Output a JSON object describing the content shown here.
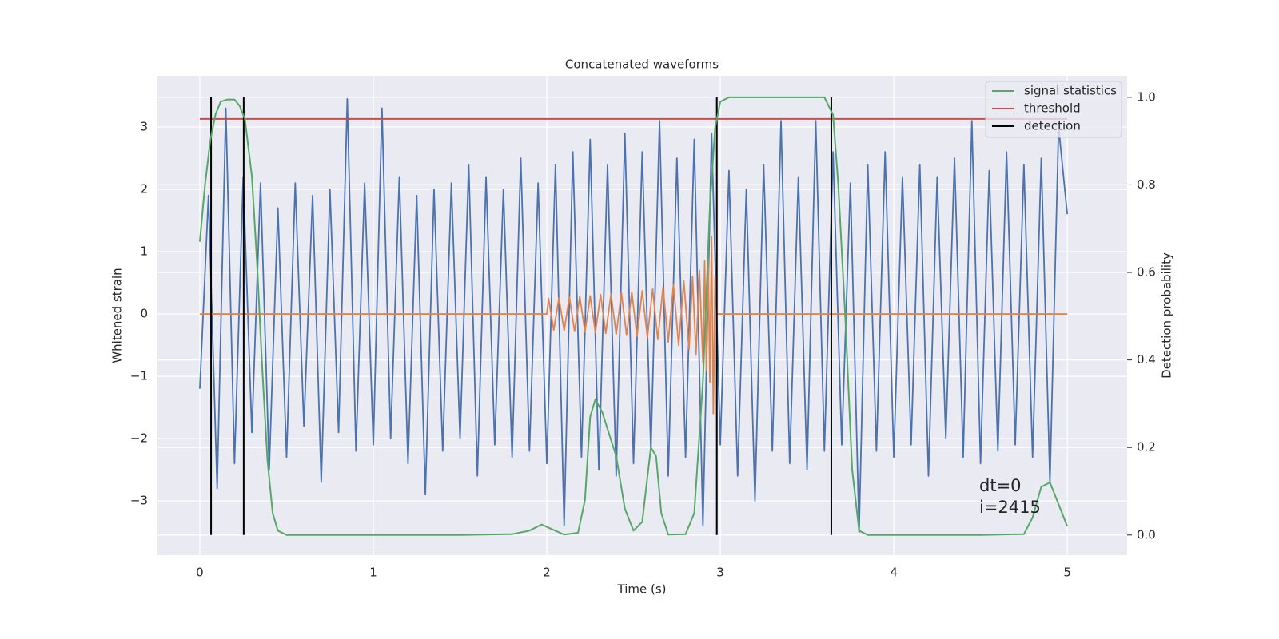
{
  "chart_data": {
    "type": "line",
    "title": "Concatenated waveforms",
    "x_label": "Time (s)",
    "y_label": "Whitened strain",
    "y2_label": "Detection probability",
    "xlim": [
      -0.244,
      5.345
    ],
    "ylim": [
      -3.87,
      3.82
    ],
    "y2lim": [
      -0.046,
      1.049
    ],
    "xticks": [
      0,
      1,
      2,
      3,
      4,
      5
    ],
    "yticks": [
      {
        "value": -3,
        "label": "−3"
      },
      {
        "value": -2,
        "label": "−2"
      },
      {
        "value": -1,
        "label": "−1"
      },
      0,
      1,
      2,
      3
    ],
    "y2ticks": [
      {
        "value": 0,
        "label": "0.0"
      },
      0.2,
      0.4,
      0.6,
      0.8,
      {
        "value": 1,
        "label": "1.0"
      }
    ],
    "grid": true,
    "legend": "upper right",
    "annotations": [
      "dt=0",
      "i=2415"
    ],
    "strain": {
      "color": "#4c72b0",
      "x": [
        0,
        0.05,
        0.1,
        0.15,
        0.2,
        0.25,
        0.3,
        0.35,
        0.4,
        0.45,
        0.5,
        0.55,
        0.6,
        0.65,
        0.7,
        0.75,
        0.8,
        0.85,
        0.9,
        0.95,
        1.0,
        1.05,
        1.1,
        1.15,
        1.2,
        1.25,
        1.3,
        1.35,
        1.4,
        1.45,
        1.5,
        1.55,
        1.6,
        1.65,
        1.7,
        1.75,
        1.8,
        1.85,
        1.9,
        1.95,
        2.0,
        2.05,
        2.1,
        2.15,
        2.2,
        2.25,
        2.3,
        2.35,
        2.4,
        2.45,
        2.5,
        2.55,
        2.6,
        2.65,
        2.7,
        2.75,
        2.8,
        2.85,
        2.9,
        2.95,
        3.0,
        3.05,
        3.1,
        3.15,
        3.2,
        3.25,
        3.3,
        3.35,
        3.4,
        3.45,
        3.5,
        3.55,
        3.6,
        3.65,
        3.7,
        3.75,
        3.8,
        3.85,
        3.9,
        3.95,
        4.0,
        4.05,
        4.1,
        4.15,
        4.2,
        4.25,
        4.3,
        4.35,
        4.4,
        4.45,
        4.5,
        4.55,
        4.6,
        4.65,
        4.7,
        4.75,
        4.8,
        4.85,
        4.9,
        4.95,
        5.0
      ],
      "values": [
        -1.2,
        1.9,
        -2.8,
        3.3,
        -2.4,
        2.2,
        -1.9,
        2.1,
        -2.5,
        1.7,
        -2.3,
        2.1,
        -1.8,
        1.9,
        -2.7,
        2.0,
        -1.9,
        3.45,
        -2.2,
        2.1,
        -2.1,
        3.3,
        -2.0,
        2.2,
        -2.4,
        1.9,
        -2.9,
        2.0,
        -2.2,
        2.1,
        -2.0,
        2.4,
        -2.6,
        2.2,
        -2.1,
        2.0,
        -2.3,
        2.5,
        -2.2,
        2.1,
        -2.4,
        2.4,
        -3.4,
        2.6,
        -2.3,
        2.8,
        -2.5,
        2.4,
        -2.6,
        2.9,
        -2.4,
        2.6,
        -2.2,
        3.1,
        -2.6,
        2.5,
        -2.3,
        2.8,
        -3.4,
        2.9,
        -2.1,
        2.3,
        -2.6,
        2.0,
        -3.0,
        2.4,
        -2.2,
        3.1,
        -2.4,
        2.2,
        -2.5,
        3.1,
        -2.2,
        2.6,
        -2.1,
        2.1,
        -3.5,
        2.4,
        -2.2,
        2.6,
        -2.3,
        2.2,
        -2.1,
        2.4,
        -2.6,
        2.2,
        -2.0,
        2.5,
        -2.3,
        3.1,
        -2.4,
        2.3,
        -2.2,
        2.6,
        -2.1,
        2.4,
        -2.3,
        2.5,
        -2.7,
        3.0,
        1.6
      ]
    },
    "template": {
      "color": "#dd8452",
      "x": [
        0,
        2.0,
        2.01,
        2.04,
        2.07,
        2.1,
        2.13,
        2.16,
        2.19,
        2.22,
        2.25,
        2.28,
        2.31,
        2.34,
        2.37,
        2.4,
        2.43,
        2.46,
        2.49,
        2.52,
        2.55,
        2.58,
        2.61,
        2.64,
        2.67,
        2.7,
        2.73,
        2.76,
        2.79,
        2.82,
        2.84,
        2.86,
        2.88,
        2.9,
        2.91,
        2.92,
        2.93,
        2.94,
        2.95,
        2.96,
        2.97,
        2.98,
        3.0,
        5.0
      ],
      "values": [
        0,
        0,
        0.25,
        -0.26,
        0.26,
        -0.27,
        0.27,
        -0.28,
        0.28,
        -0.29,
        0.29,
        -0.3,
        0.31,
        -0.31,
        0.32,
        -0.33,
        0.34,
        -0.34,
        0.35,
        -0.36,
        0.37,
        -0.38,
        0.4,
        -0.41,
        0.43,
        -0.45,
        0.47,
        -0.5,
        0.53,
        -0.57,
        0.6,
        -0.65,
        0.7,
        -0.78,
        0.85,
        -0.9,
        1.0,
        -1.1,
        1.25,
        -1.6,
        0.6,
        0,
        0,
        0
      ]
    },
    "series": [
      {
        "name": "signal statistics",
        "color": "#55a868",
        "axis": "y2",
        "x": [
          0,
          0.03,
          0.06,
          0.09,
          0.12,
          0.16,
          0.2,
          0.23,
          0.26,
          0.3,
          0.33,
          0.36,
          0.39,
          0.42,
          0.45,
          0.5,
          1.0,
          1.5,
          1.8,
          1.9,
          1.97,
          2.02,
          2.1,
          2.18,
          2.22,
          2.25,
          2.28,
          2.32,
          2.4,
          2.45,
          2.5,
          2.55,
          2.6,
          2.63,
          2.66,
          2.7,
          2.8,
          2.85,
          2.9,
          2.94,
          2.97,
          3.0,
          3.05,
          3.6,
          3.65,
          3.68,
          3.72,
          3.76,
          3.8,
          3.85,
          4.5,
          4.75,
          4.8,
          4.85,
          4.9,
          4.95,
          5.0
        ],
        "values": [
          0.67,
          0.8,
          0.9,
          0.96,
          0.99,
          0.995,
          0.995,
          0.98,
          0.95,
          0.82,
          0.62,
          0.38,
          0.17,
          0.05,
          0.01,
          0,
          0,
          0,
          0.002,
          0.01,
          0.024,
          0.015,
          0.001,
          0.005,
          0.08,
          0.27,
          0.31,
          0.28,
          0.18,
          0.06,
          0.01,
          0.03,
          0.2,
          0.18,
          0.05,
          0.001,
          0.002,
          0.05,
          0.35,
          0.75,
          0.93,
          0.99,
          1.0,
          1.0,
          0.96,
          0.8,
          0.5,
          0.15,
          0.01,
          0,
          0,
          0.002,
          0.04,
          0.11,
          0.12,
          0.07,
          0.02
        ]
      },
      {
        "name": "threshold",
        "color": "#c44e52",
        "x": [
          0,
          5
        ],
        "values": [
          3.13,
          3.13
        ]
      },
      {
        "name": "detection",
        "color": "#000000",
        "axis": "y2",
        "kind": "vlines",
        "x": [
          0.065,
          0.253,
          2.98,
          3.64
        ],
        "ymin": 0,
        "ymax": 1
      }
    ]
  }
}
